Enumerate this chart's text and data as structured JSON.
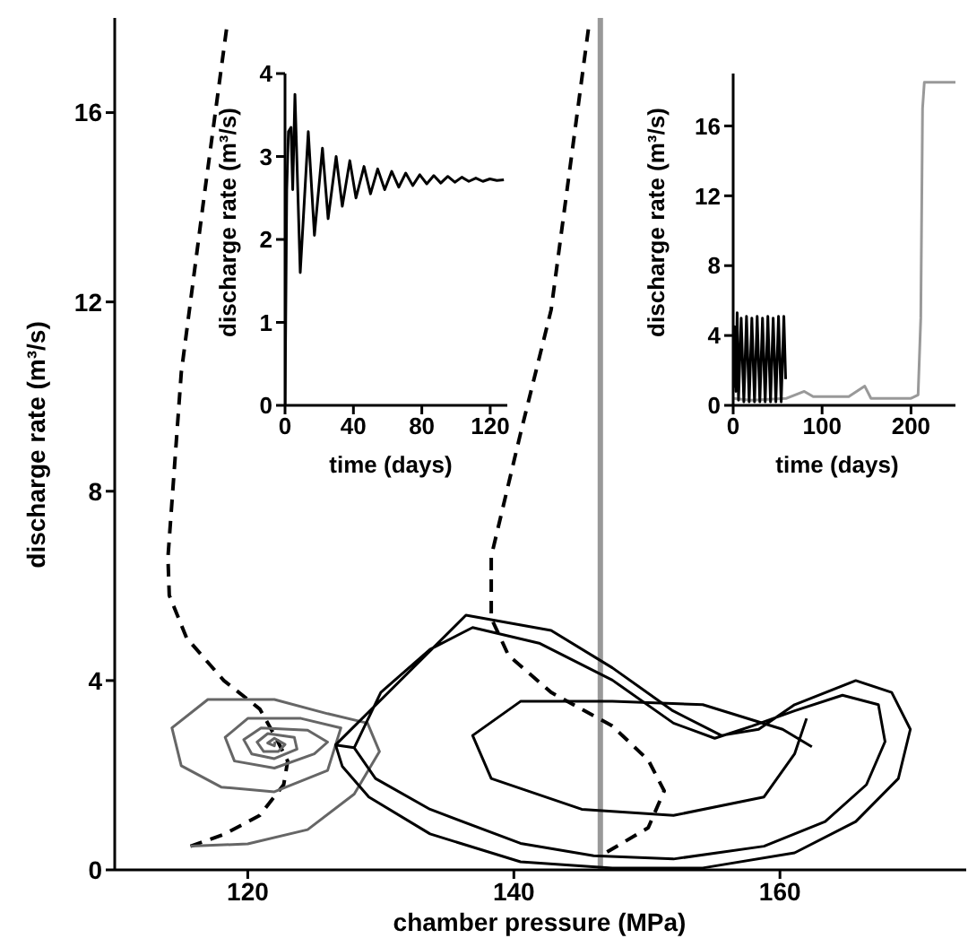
{
  "chart_data": [
    {
      "type": "line",
      "xlabel": "chamber pressure (MPa)",
      "ylabel": "discharge rate (m³/s)",
      "xlim": [
        110,
        174
      ],
      "xticks": [
        120,
        140,
        160
      ],
      "ylim": [
        0,
        18
      ],
      "yticks": [
        0,
        4,
        8,
        12,
        16
      ],
      "ref_lines": [
        {
          "axis": "x",
          "value": 146.5,
          "color": "#999999"
        }
      ],
      "series": [
        {
          "color": "#000000",
          "line_style": "dashed",
          "x": [
            118.4,
            116.8,
            115.0,
            114.0,
            114.1,
            115.4,
            118.2,
            120.9,
            122.1,
            123.0,
            122.7,
            120.9,
            118.2,
            115.7
          ],
          "values": [
            17.76,
            14.4,
            10.5,
            6.6,
            5.8,
            4.9,
            4.0,
            3.4,
            2.8,
            2.3,
            1.8,
            1.15,
            0.75,
            0.5
          ]
        },
        {
          "color": "#666666",
          "line_style": "solid",
          "x": [
            115.7,
            120,
            124.5,
            128,
            129.9,
            129,
            126,
            122,
            117,
            114.3,
            115,
            118,
            122,
            126,
            127,
            124,
            120,
            118.3,
            119,
            122,
            125,
            126,
            124.5,
            121,
            119.7,
            120.3,
            122,
            123.7,
            123.5,
            121.5,
            120.7,
            121.2,
            122.3,
            122.8,
            122,
            121.5,
            122,
            122.05
          ],
          "values": [
            0.5,
            0.55,
            0.85,
            1.6,
            2.5,
            3.1,
            3.3,
            3.6,
            3.6,
            3.0,
            2.2,
            1.75,
            1.65,
            2.1,
            3.0,
            3.2,
            3.2,
            2.8,
            2.3,
            2.15,
            2.45,
            2.7,
            2.95,
            3.0,
            2.75,
            2.45,
            2.35,
            2.55,
            2.8,
            2.88,
            2.7,
            2.5,
            2.5,
            2.65,
            2.78,
            2.68,
            2.62,
            2.71
          ]
        },
        {
          "color": "#000000",
          "line_style": "solid",
          "x": [
            126.6,
            136.4,
            142.8,
            147.4,
            151.96,
            155.6,
            158.4,
            161.1,
            165.7,
            168.4,
            169.8,
            168.9,
            165.7,
            161.1,
            154.2,
            147.4,
            140.5,
            133.7,
            129.1,
            127.1,
            126.6,
            128.0,
            130,
            133.7,
            136.9,
            141.9,
            147.4,
            152,
            155.1,
            157.9,
            161.1,
            164.7,
            167.4,
            167.9,
            166.5,
            163.4,
            158.8,
            152,
            146,
            140.5,
            133.7,
            129.6,
            128.0
          ],
          "values": [
            2.64,
            5.38,
            5.06,
            4.27,
            3.36,
            2.84,
            2.97,
            3.49,
            4.0,
            3.75,
            2.97,
            1.93,
            1.02,
            0.36,
            0.04,
            0.04,
            0.17,
            0.76,
            1.54,
            2.19,
            2.64,
            2.58,
            3.75,
            4.66,
            5.12,
            4.79,
            4.01,
            3.1,
            2.78,
            3.04,
            3.36,
            3.69,
            3.49,
            2.71,
            1.8,
            1.02,
            0.5,
            0.23,
            0.3,
            0.56,
            1.28,
            1.93,
            2.58
          ]
        },
        {
          "color": "#000000",
          "line_style": "solid",
          "x": [
            162.4,
            160.2,
            154.2,
            147.4,
            140.5,
            136.9,
            138.3,
            145.1,
            152,
            158.8,
            161.1,
            162.0
          ],
          "values": [
            2.6,
            2.97,
            3.49,
            3.56,
            3.56,
            2.84,
            1.93,
            1.28,
            1.15,
            1.54,
            2.45,
            3.2
          ]
        },
        {
          "color": "#000000",
          "line_style": "dashed",
          "x": [
            145.6,
            142.8,
            140.5,
            138.3,
            138.3,
            139.6,
            142.8,
            147.4,
            150.1,
            151.3,
            150.1,
            146.9
          ],
          "values": [
            17.76,
            11.83,
            9.22,
            6.62,
            5.32,
            4.53,
            3.75,
            3.04,
            2.32,
            1.67,
            0.89,
            0.36
          ]
        }
      ]
    },
    {
      "type": "line",
      "xlabel": "time (days)",
      "ylabel": "discharge rate (m³/s)",
      "xlim": [
        0,
        130
      ],
      "xticks": [
        0,
        40,
        80,
        120
      ],
      "ylim": [
        0,
        4
      ],
      "yticks": [
        0,
        1,
        2,
        3,
        4
      ],
      "series": [
        {
          "color": "#000000",
          "line_style": "solid",
          "x": [
            0,
            1,
            2,
            3.5,
            4.5,
            5.8,
            8.9,
            13.6,
            17.2,
            21.9,
            25.2,
            29.9,
            33.5,
            37.9,
            41.5,
            46.2,
            50,
            54.2,
            58.3,
            62.4,
            66.5,
            70.6,
            74.7,
            78.8,
            82.9,
            87,
            91.1,
            95.2,
            99.3,
            103.4,
            107.5,
            111.6,
            115.7,
            119.8,
            123.9,
            128
          ],
          "values": [
            0,
            2.6,
            3.3,
            3.35,
            2.6,
            3.75,
            1.6,
            3.3,
            2.05,
            3.1,
            2.25,
            3.0,
            2.4,
            2.95,
            2.5,
            2.88,
            2.55,
            2.85,
            2.6,
            2.82,
            2.63,
            2.8,
            2.65,
            2.78,
            2.67,
            2.77,
            2.68,
            2.76,
            2.69,
            2.75,
            2.7,
            2.74,
            2.7,
            2.73,
            2.71,
            2.72
          ]
        }
      ]
    },
    {
      "type": "line",
      "xlabel": "time (days)",
      "ylabel": "discharge rate (m³/s)",
      "xlim": [
        0,
        250
      ],
      "xticks": [
        0,
        100,
        200
      ],
      "ylim": [
        0,
        19
      ],
      "yticks": [
        0,
        4,
        8,
        12,
        16
      ],
      "series": [
        {
          "color": "#999999",
          "line_style": "solid",
          "x": [
            0,
            20,
            60,
            80,
            90,
            130,
            148,
            155,
            200,
            208,
            211,
            213,
            215,
            250
          ],
          "values": [
            0.4,
            0.3,
            0.4,
            0.8,
            0.5,
            0.5,
            1.1,
            0.4,
            0.4,
            0.6,
            5,
            17,
            18.5,
            18.5
          ]
        },
        {
          "color": "#000000",
          "line_style": "solid",
          "x": [
            0,
            1.5,
            3,
            4.5,
            6,
            9,
            12,
            15,
            18,
            21,
            24,
            27,
            30,
            33,
            36,
            39,
            42,
            45,
            48,
            51,
            54,
            57,
            59
          ],
          "values": [
            1,
            4.5,
            0.8,
            5.3,
            0.3,
            5,
            0.2,
            5.1,
            0.2,
            5,
            0.2,
            5.1,
            0.2,
            5,
            0.2,
            5.1,
            0.2,
            5,
            0.2,
            5.1,
            0.2,
            5.1,
            1.5
          ]
        }
      ]
    }
  ]
}
